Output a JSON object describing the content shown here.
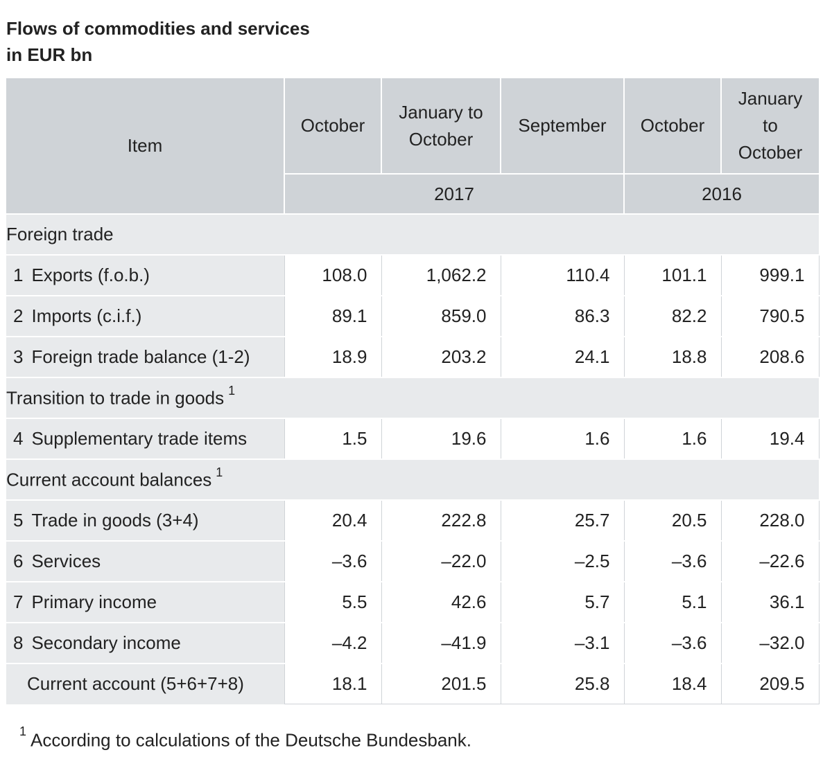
{
  "title": {
    "line1": "Flows of commodities and services",
    "line2": "in EUR bn"
  },
  "header": {
    "item": "Item",
    "columns": [
      {
        "line1": "October",
        "line2": ""
      },
      {
        "line1": "January to",
        "line2": "October"
      },
      {
        "line1": "September",
        "line2": ""
      },
      {
        "line1": "October",
        "line2": ""
      },
      {
        "line1": "January",
        "line2": "to",
        "line3": "October"
      }
    ],
    "year_2017": "2017",
    "year_2016": "2016"
  },
  "sections": {
    "foreign_trade": "Foreign trade",
    "transition": "Transition to trade in goods",
    "transition_note": "1",
    "current_account": "Current account balances",
    "current_account_note": "1"
  },
  "rows": [
    {
      "num": "1",
      "label": "Exports (f.o.b.)",
      "values": [
        "108.0",
        "1,062.2",
        "110.4",
        "101.1",
        "999.1"
      ]
    },
    {
      "num": "2",
      "label": "Imports (c.i.f.)",
      "values": [
        "89.1",
        "859.0",
        "86.3",
        "82.2",
        "790.5"
      ]
    },
    {
      "num": "3",
      "label": "Foreign trade balance (1-2)",
      "values": [
        "18.9",
        "203.2",
        "24.1",
        "18.8",
        "208.6"
      ]
    },
    {
      "num": "4",
      "label": "Supplementary trade items",
      "values": [
        "1.5",
        "19.6",
        "1.6",
        "1.6",
        "19.4"
      ]
    },
    {
      "num": "5",
      "label": "Trade in goods (3+4)",
      "values": [
        "20.4",
        "222.8",
        "25.7",
        "20.5",
        "228.0"
      ]
    },
    {
      "num": "6",
      "label": "Services",
      "values": [
        "–3.6",
        "–22.0",
        "–2.5",
        "–3.6",
        "–22.6"
      ]
    },
    {
      "num": "7",
      "label": "Primary income",
      "values": [
        "5.5",
        "42.6",
        "5.7",
        "5.1",
        "36.1"
      ]
    },
    {
      "num": "8",
      "label": "Secondary income",
      "values": [
        "–4.2",
        "–41.9",
        "–3.1",
        "–3.6",
        "–32.0"
      ]
    },
    {
      "num": "",
      "label": "Current account (5+6+7+8)",
      "values": [
        "18.1",
        "201.5",
        "25.8",
        "18.4",
        "209.5"
      ]
    }
  ],
  "footnote": {
    "mark": "1",
    "text": "According to calculations of the Deutsche Bundesbank."
  }
}
